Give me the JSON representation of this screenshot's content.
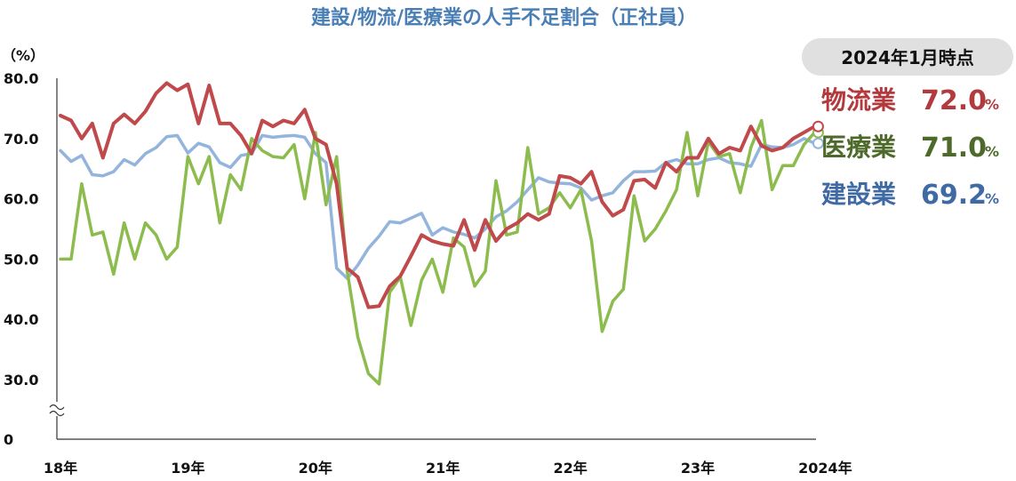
{
  "chart_data": {
    "type": "line",
    "title": "建設/物流/医療業の人手不足割合（正社員）",
    "ylabel": "（%）",
    "ylim": [
      0,
      80
    ],
    "y_break": [
      0,
      30
    ],
    "yticks": [
      "80.0",
      "70.0",
      "60.0",
      "50.0",
      "40.0",
      "30.0",
      "0"
    ],
    "x_tick_labels": [
      "18年",
      "19年",
      "20年",
      "21年",
      "22年",
      "23年",
      "2024年"
    ],
    "x_tick_months": [
      0,
      12,
      24,
      36,
      48,
      60,
      72
    ],
    "legend_header": "2024年1月時点",
    "series": [
      {
        "name": "建設業",
        "color": "#93b4dc",
        "label_color": "#3f6aa3",
        "latest_value": "69.2",
        "unit": "%",
        "values": [
          68.0,
          66.2,
          67.2,
          64.0,
          63.8,
          64.5,
          66.5,
          65.6,
          67.5,
          68.5,
          70.3,
          70.5,
          67.6,
          69.2,
          68.6,
          66.0,
          65.2,
          67.2,
          67.5,
          70.5,
          70.2,
          70.4,
          70.5,
          70.2,
          67.5,
          66.0,
          48.5,
          46.8,
          49.0,
          51.8,
          53.8,
          56.2,
          56.0,
          56.8,
          57.6,
          54.0,
          55.2,
          54.5,
          54.1,
          53.5,
          55.0,
          57.0,
          58.0,
          59.5,
          61.5,
          63.5,
          62.8,
          62.6,
          62.5,
          61.8,
          59.8,
          60.5,
          61.0,
          63.0,
          64.5,
          64.5,
          64.6,
          66.0,
          66.5,
          65.8,
          65.8,
          66.5,
          66.8,
          66.0,
          65.8,
          65.4,
          69.0,
          68.6,
          68.5,
          69.0,
          70.0,
          69.2
        ]
      },
      {
        "name": "医療業",
        "color": "#8dbc4e",
        "label_color": "#4d6a2a",
        "latest_value": "71.0",
        "unit": "%",
        "values": [
          50.0,
          50.0,
          62.5,
          54.0,
          54.5,
          47.5,
          56.0,
          50.0,
          56.0,
          54.0,
          50.0,
          52.0,
          67.0,
          62.5,
          67.0,
          56.0,
          64.0,
          61.5,
          70.0,
          68.0,
          67.0,
          66.8,
          69.0,
          60.0,
          71.0,
          59.0,
          67.0,
          48.0,
          37.0,
          31.0,
          27.8,
          44.5,
          47.0,
          39.0,
          46.5,
          50.0,
          44.5,
          53.5,
          52.0,
          45.5,
          48.0,
          63.0,
          54.0,
          54.5,
          68.5,
          57.5,
          58.5,
          61.0,
          58.5,
          61.5,
          53.0,
          38.0,
          43.0,
          45.0,
          60.5,
          53.0,
          55.0,
          58.0,
          61.5,
          71.0,
          60.5,
          69.5,
          67.0,
          67.5,
          61.0,
          68.5,
          73.0,
          61.5,
          65.5,
          65.5,
          69.0,
          71.0
        ]
      },
      {
        "name": "物流業",
        "color": "#c0494c",
        "label_color": "#b23a3d",
        "latest_value": "72.0",
        "unit": "%",
        "values": [
          73.8,
          73.0,
          70.0,
          72.5,
          66.8,
          72.5,
          74.0,
          72.5,
          74.5,
          77.5,
          79.2,
          78.0,
          79.0,
          72.5,
          78.8,
          72.5,
          72.5,
          70.5,
          67.5,
          73.0,
          72.0,
          73.0,
          72.5,
          74.8,
          70.0,
          69.0,
          62.5,
          48.5,
          47.0,
          42.0,
          42.2,
          45.5,
          47.2,
          50.5,
          54.0,
          53.0,
          52.5,
          52.2,
          56.5,
          51.5,
          56.5,
          53.0,
          55.0,
          56.0,
          57.5,
          56.5,
          57.5,
          63.8,
          63.5,
          62.5,
          64.5,
          59.5,
          57.2,
          58.2,
          63.0,
          63.2,
          61.8,
          66.0,
          64.5,
          66.8,
          66.8,
          70.0,
          67.5,
          68.5,
          68.0,
          72.0,
          68.8,
          68.0,
          68.5,
          70.0,
          71.0,
          72.0
        ]
      }
    ]
  }
}
